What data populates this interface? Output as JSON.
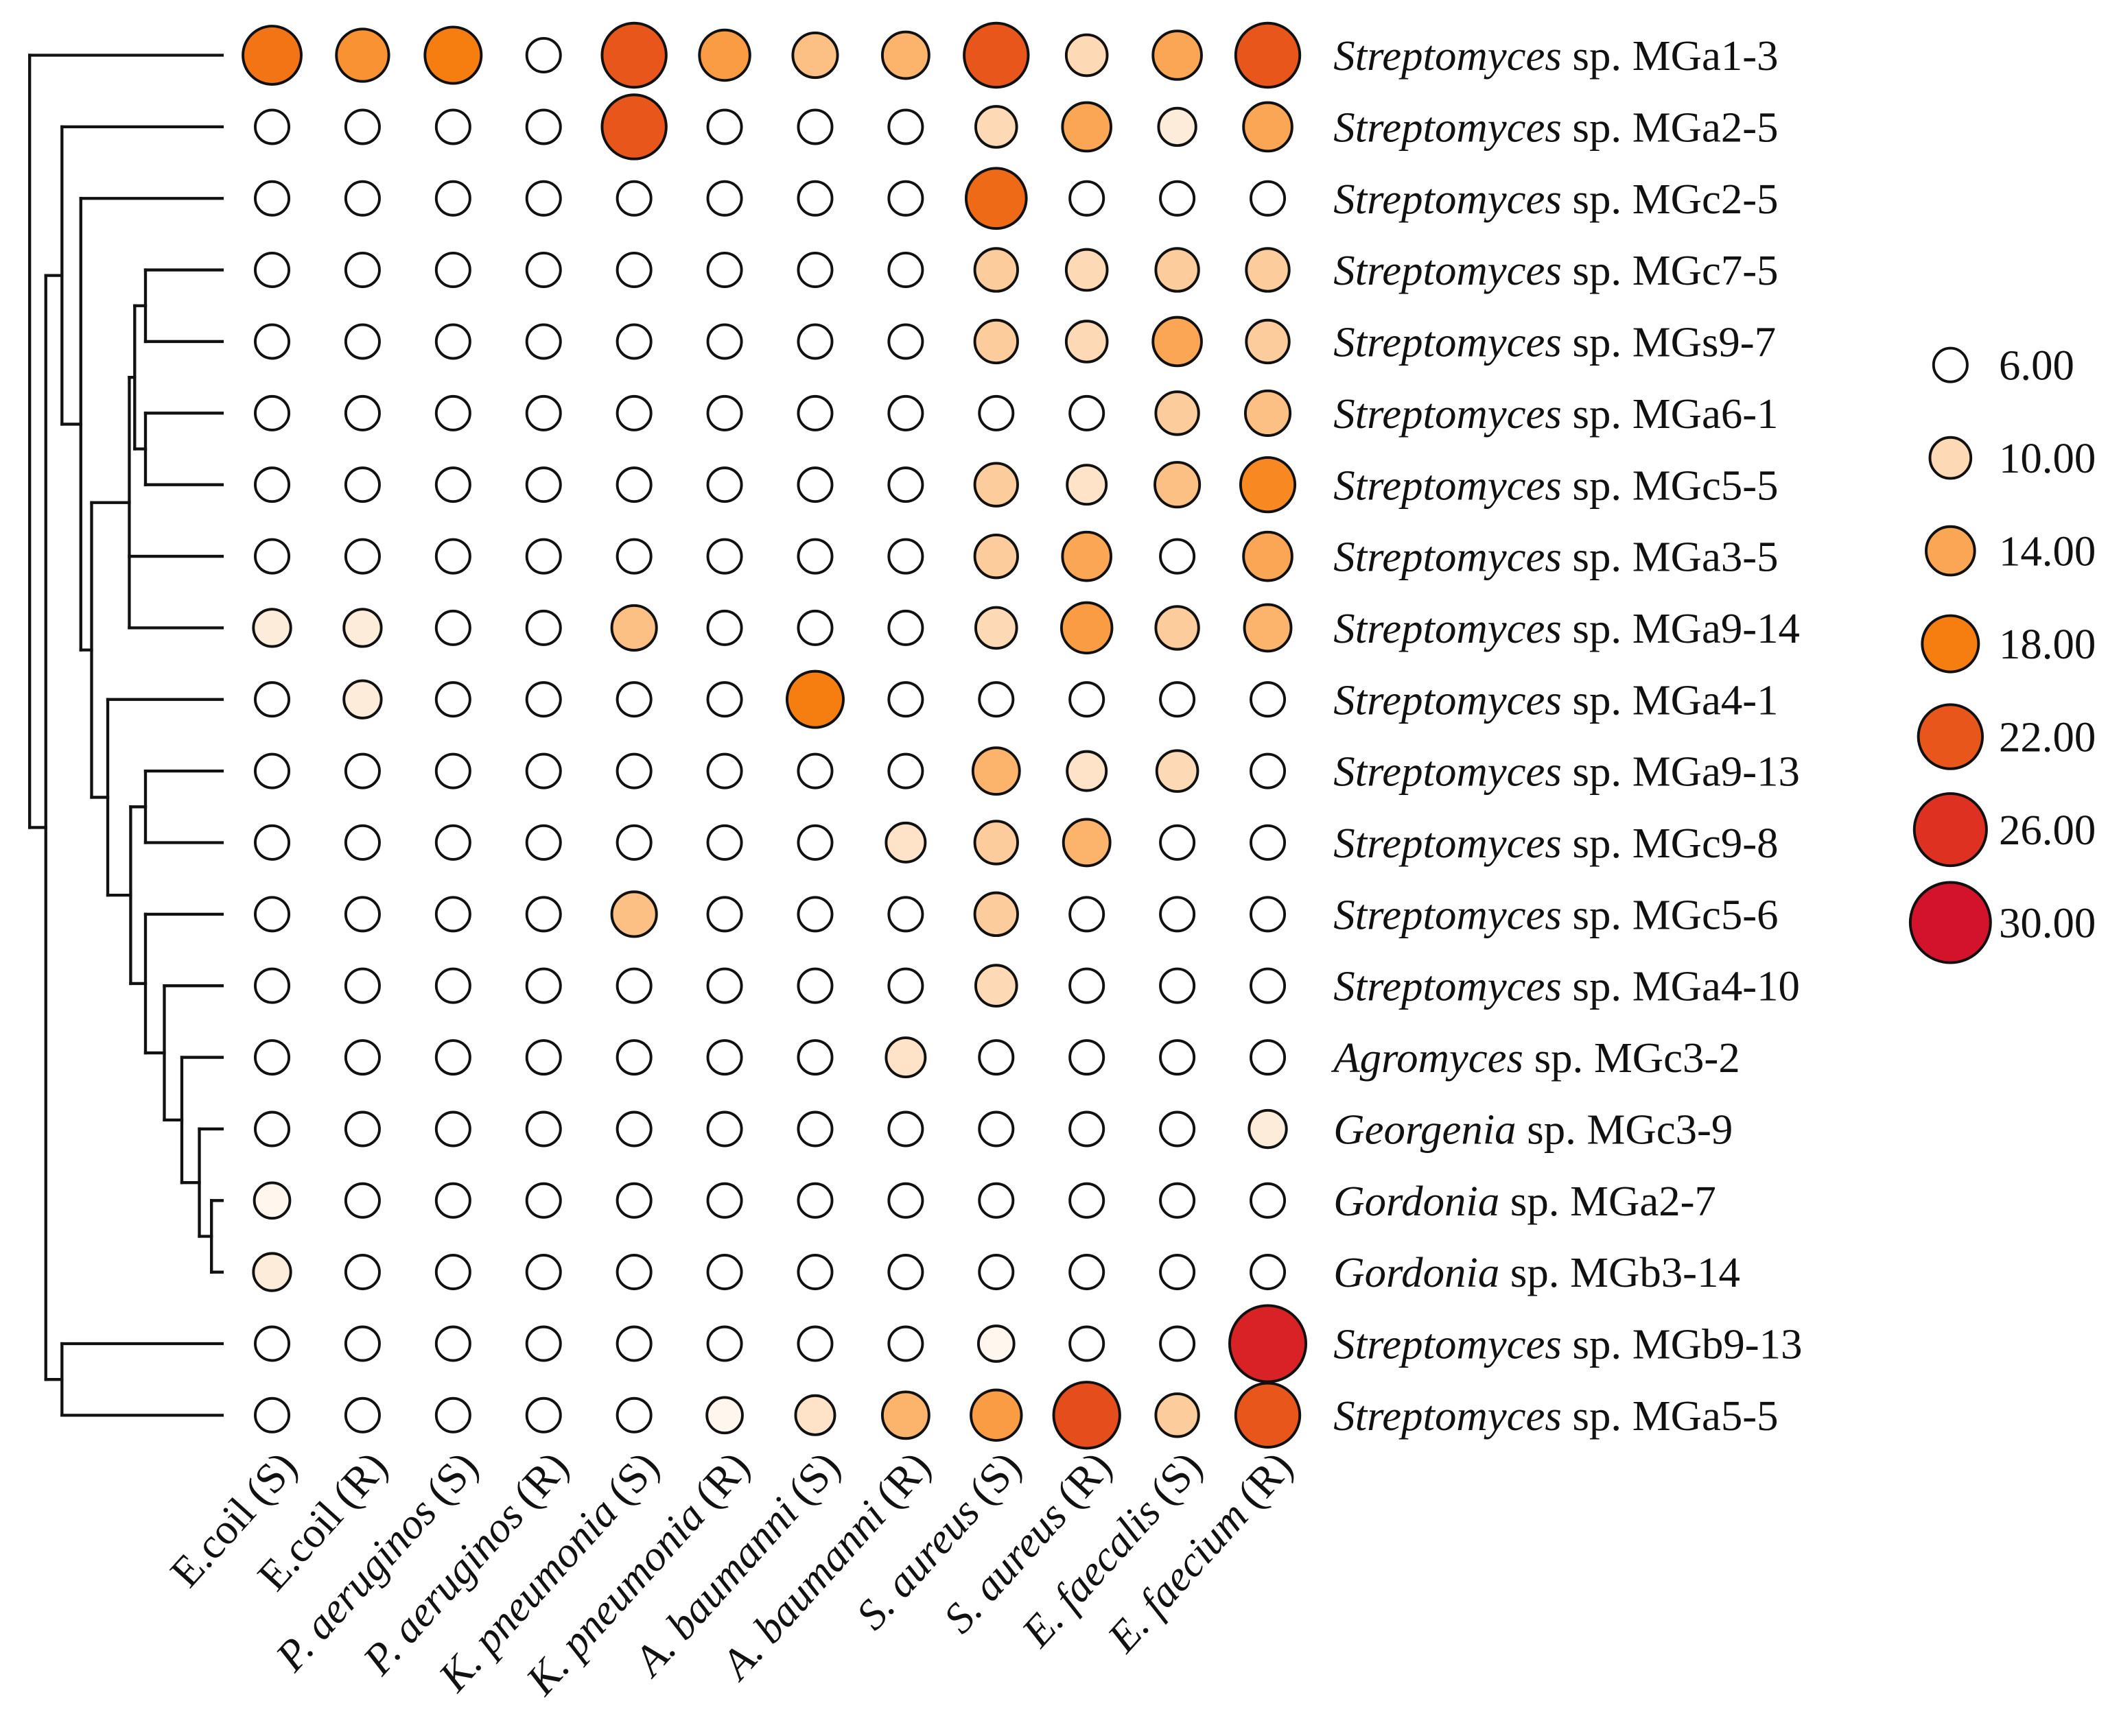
{
  "chart_data": {
    "type": "heatmap",
    "rows": [
      {
        "genus": "Streptomyces",
        "rest": "sp. MGa1-3"
      },
      {
        "genus": "Streptomyces",
        "rest": "sp. MGa2-5"
      },
      {
        "genus": "Streptomyces",
        "rest": "sp. MGc2-5"
      },
      {
        "genus": "Streptomyces",
        "rest": "sp. MGc7-5"
      },
      {
        "genus": "Streptomyces",
        "rest": "sp. MGs9-7"
      },
      {
        "genus": "Streptomyces",
        "rest": "sp. MGa6-1"
      },
      {
        "genus": "Streptomyces",
        "rest": "sp. MGc5-5"
      },
      {
        "genus": "Streptomyces",
        "rest": "sp. MGa3-5"
      },
      {
        "genus": "Streptomyces",
        "rest": "sp. MGa9-14"
      },
      {
        "genus": "Streptomyces",
        "rest": "sp. MGa4-1"
      },
      {
        "genus": "Streptomyces",
        "rest": "sp. MGa9-13"
      },
      {
        "genus": "Streptomyces",
        "rest": "sp. MGc9-8"
      },
      {
        "genus": "Streptomyces",
        "rest": "sp. MGc5-6"
      },
      {
        "genus": "Streptomyces",
        "rest": "sp. MGa4-10"
      },
      {
        "genus": "Agromyces",
        "rest": "sp. MGc3-2"
      },
      {
        "genus": "Georgenia",
        "rest": "sp. MGc3-9"
      },
      {
        "genus": "Gordonia",
        "rest": "sp. MGa2-7"
      },
      {
        "genus": "Gordonia",
        "rest": "sp. MGb3-14"
      },
      {
        "genus": "Streptomyces",
        "rest": "sp. MGb9-13"
      },
      {
        "genus": "Streptomyces",
        "rest": "sp. MGa5-5"
      }
    ],
    "columns": [
      {
        "name": "E.coil",
        "italic": false,
        "suffix": "(S)"
      },
      {
        "name": "E.coil",
        "italic": false,
        "suffix": "(R)"
      },
      {
        "name": "P. aeruginos",
        "italic": true,
        "suffix": "(S)"
      },
      {
        "name": "P. aeruginos",
        "italic": true,
        "suffix": "(R)"
      },
      {
        "name": "K. pneumonia",
        "italic": true,
        "suffix": "(S)"
      },
      {
        "name": "K. pneumonia",
        "italic": true,
        "suffix": "(R)"
      },
      {
        "name": "A. baumanni",
        "italic": true,
        "suffix": "(S)"
      },
      {
        "name": "A. baumanni",
        "italic": true,
        "suffix": "(R)"
      },
      {
        "name": "S. aureus",
        "italic": true,
        "suffix": "(S)"
      },
      {
        "name": "S. aureus",
        "italic": true,
        "suffix": "(R)"
      },
      {
        "name": "E. faecalis",
        "italic": true,
        "suffix": "(S)"
      },
      {
        "name": "E. faecium",
        "italic": true,
        "suffix": "(R)"
      }
    ],
    "values": [
      [
        19,
        16,
        18,
        6,
        22,
        15,
        12,
        13,
        22,
        10,
        14,
        22
      ],
      [
        6,
        6,
        6,
        6,
        22,
        6,
        6,
        6,
        10,
        14,
        8,
        14
      ],
      [
        6,
        6,
        6,
        6,
        6,
        6,
        6,
        6,
        20,
        6,
        6,
        6
      ],
      [
        6,
        6,
        6,
        6,
        6,
        6,
        6,
        6,
        11,
        10,
        11,
        11
      ],
      [
        6,
        6,
        6,
        6,
        6,
        6,
        6,
        6,
        11,
        10,
        14,
        11
      ],
      [
        6,
        6,
        6,
        6,
        6,
        6,
        6,
        6,
        6,
        6,
        11,
        12
      ],
      [
        6,
        6,
        6,
        6,
        6,
        6,
        6,
        6,
        11,
        9,
        12,
        17
      ],
      [
        6,
        6,
        6,
        6,
        6,
        6,
        6,
        6,
        11,
        14,
        6,
        14
      ],
      [
        8,
        8,
        6,
        6,
        12,
        6,
        6,
        6,
        10,
        15,
        11,
        13
      ],
      [
        6,
        8,
        6,
        6,
        6,
        6,
        18,
        6,
        6,
        6,
        6,
        6
      ],
      [
        6,
        6,
        6,
        6,
        6,
        6,
        6,
        6,
        13,
        9,
        10,
        6
      ],
      [
        6,
        6,
        6,
        6,
        6,
        6,
        6,
        9,
        11,
        13,
        6,
        6
      ],
      [
        6,
        6,
        6,
        6,
        12,
        6,
        6,
        6,
        11,
        6,
        6,
        6
      ],
      [
        6,
        6,
        6,
        6,
        6,
        6,
        6,
        6,
        10,
        6,
        6,
        6
      ],
      [
        6,
        6,
        6,
        6,
        6,
        6,
        6,
        9,
        6,
        6,
        6,
        6
      ],
      [
        6,
        6,
        6,
        6,
        6,
        6,
        6,
        6,
        6,
        6,
        6,
        8
      ],
      [
        7,
        6,
        6,
        6,
        6,
        6,
        6,
        6,
        6,
        6,
        6,
        6
      ],
      [
        8,
        6,
        6,
        6,
        6,
        6,
        6,
        6,
        6,
        6,
        6,
        6
      ],
      [
        6,
        6,
        6,
        6,
        6,
        6,
        6,
        6,
        7,
        6,
        6,
        28
      ],
      [
        6,
        6,
        6,
        6,
        6,
        7,
        9,
        13,
        15,
        23,
        11,
        22
      ]
    ],
    "legend": {
      "values": [
        6,
        10,
        14,
        18,
        22,
        26,
        30
      ],
      "labels": [
        "6.00",
        "10.00",
        "14.00",
        "18.00",
        "22.00",
        "26.00",
        "30.00"
      ],
      "colors": [
        "#ffffff",
        "#fdd9b5",
        "#fba654",
        "#f67e11",
        "#e8561b",
        "#df3121",
        "#d3122b"
      ]
    },
    "dendrogram": [
      0,
      [
        [
          1,
          [
            2,
            [
              [
                [
                  [
                    3,
                    4
                  ],
                  [
                    5,
                    6
                  ]
                ],
                7,
                8
              ],
              [
                9,
                [
                  [
                    10,
                    11
                  ],
                  [
                    12,
                    [
                      13,
                      [
                        14,
                        [
                          15,
                          [
                            16,
                            17
                          ]
                        ]
                      ]
                    ]
                  ]
                ]
              ]
            ]
          ]
        ],
        [
          18,
          19
        ]
      ]
    ]
  }
}
